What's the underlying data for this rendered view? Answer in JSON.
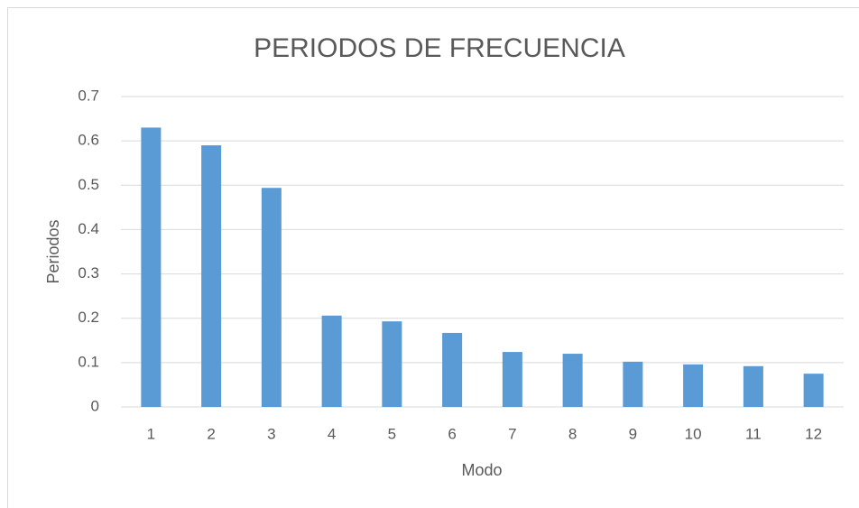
{
  "chart_data": {
    "type": "bar",
    "title": "PERIODOS DE FRECUENCIA",
    "x_label": "Modo",
    "y_label": "Periodos",
    "categories": [
      "1",
      "2",
      "3",
      "4",
      "5",
      "6",
      "7",
      "8",
      "9",
      "10",
      "11",
      "12"
    ],
    "values": [
      0.63,
      0.59,
      0.494,
      0.206,
      0.193,
      0.167,
      0.124,
      0.12,
      0.102,
      0.096,
      0.092,
      0.075
    ],
    "color": "#5b9bd5",
    "ylim": [
      0,
      0.7
    ],
    "yticks": [
      0,
      0.1,
      0.2,
      0.3,
      0.4,
      0.5,
      0.6,
      0.7
    ],
    "grid": true
  }
}
